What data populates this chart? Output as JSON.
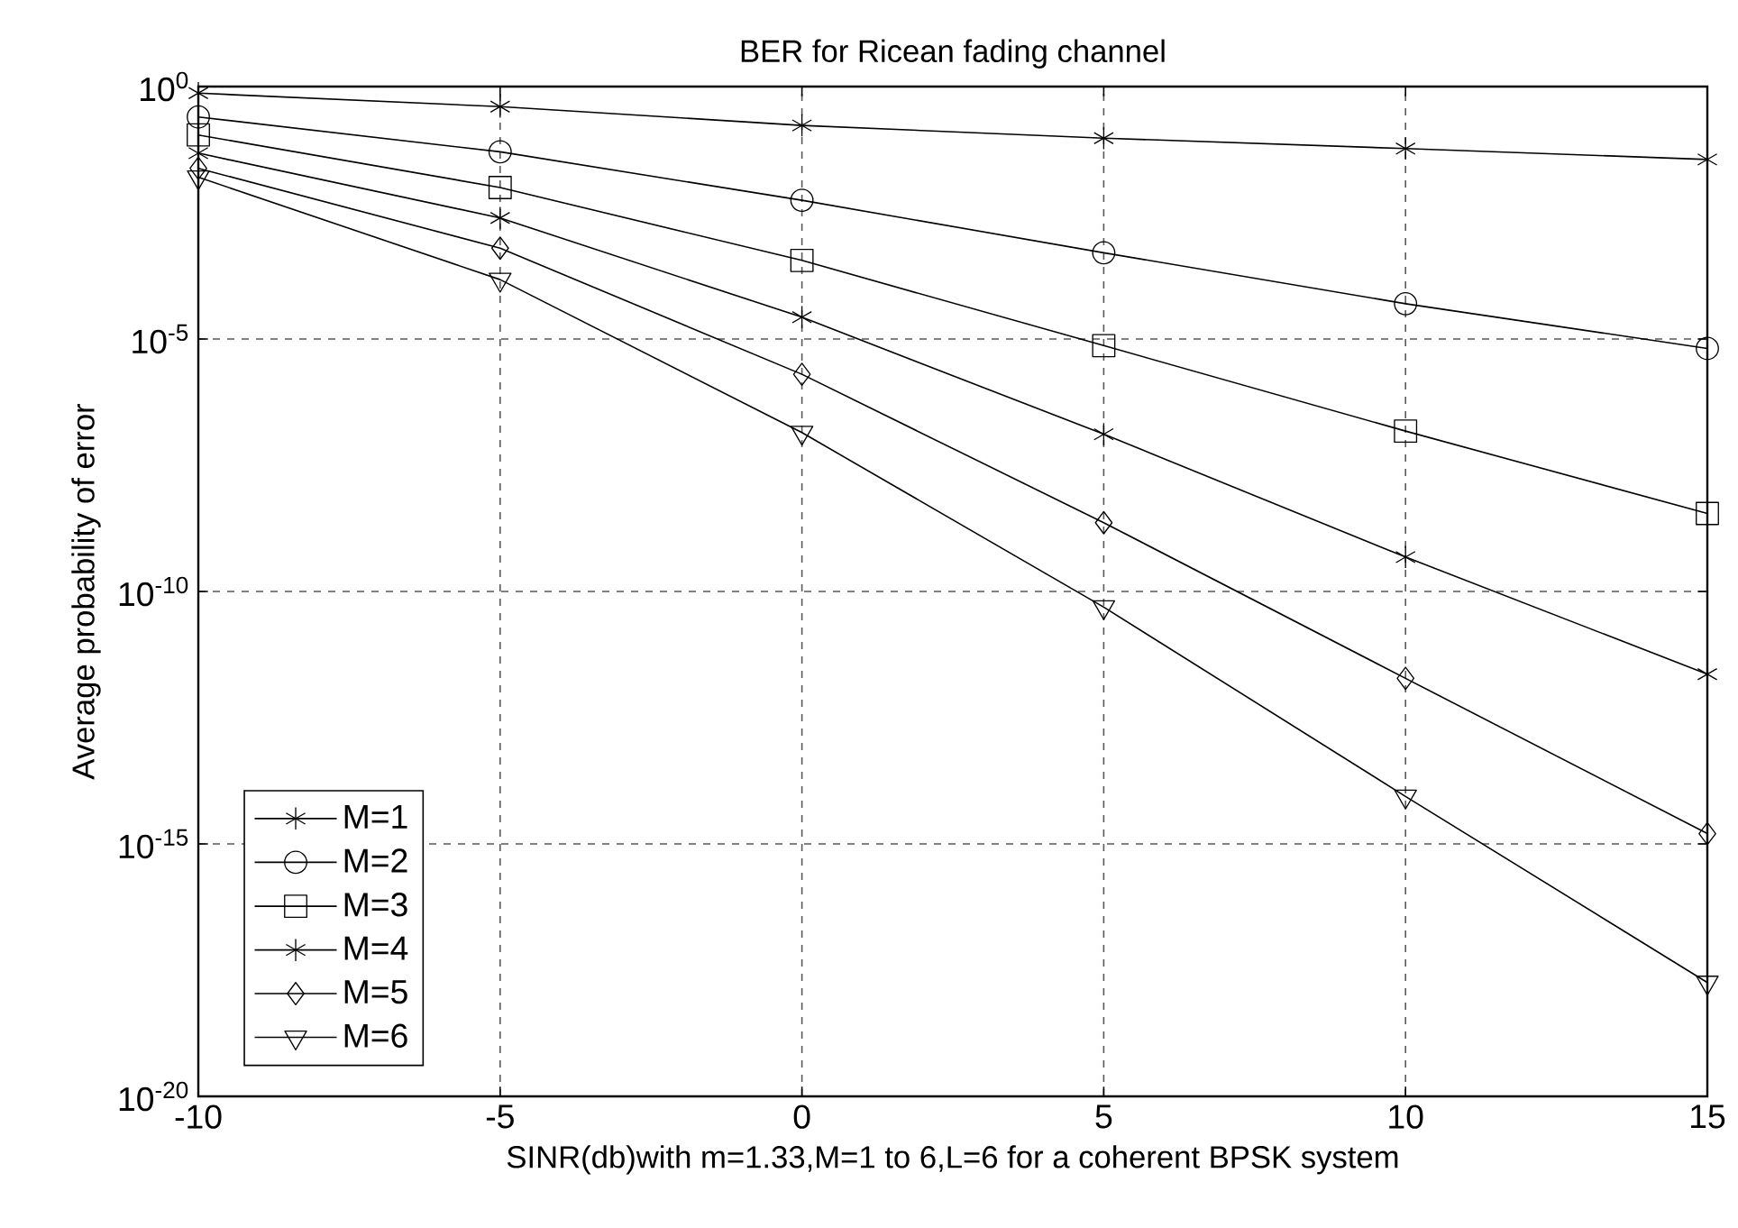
{
  "chart_data": {
    "type": "line",
    "title": "BER for Ricean fading channel",
    "xlabel": "SINR(db)with m=1.33,M=1 to 6,L=6 for a coherent BPSK system",
    "ylabel": "Average probability of error",
    "x": [
      -10,
      -5,
      0,
      5,
      10,
      15
    ],
    "series": [
      {
        "name": "M=1",
        "color": "#000000",
        "marker": "cross",
        "values": [
          0.74,
          0.4,
          0.17,
          0.095,
          0.059,
          0.036
        ]
      },
      {
        "name": "M=2",
        "color": "#000000",
        "marker": "circle",
        "values": [
          0.25,
          0.051,
          0.0056,
          0.00051,
          5e-05,
          6.5e-06
        ]
      },
      {
        "name": "M=3",
        "color": "#000000",
        "marker": "square",
        "values": [
          0.11,
          0.01,
          0.00036,
          7.4e-06,
          1.5e-07,
          3.5e-09
        ]
      },
      {
        "name": "M=4",
        "color": "#000000",
        "marker": "cross",
        "values": [
          0.048,
          0.0025,
          2.7e-05,
          1.3e-07,
          4.8e-10,
          2.3e-12
        ]
      },
      {
        "name": "M=5",
        "color": "#000000",
        "marker": "diamond",
        "values": [
          0.024,
          0.00063,
          2e-06,
          2.3e-09,
          1.9e-12,
          1.6e-15
        ]
      },
      {
        "name": "M=6",
        "color": "#000000",
        "marker": "triangle",
        "values": [
          0.016,
          0.00015,
          1.4e-07,
          4.9e-11,
          8.7e-15,
          1.8e-18
        ]
      }
    ],
    "log": "y",
    "xlim": [
      -10,
      15
    ],
    "xticks": [
      -10,
      -5,
      0,
      5,
      10,
      15
    ],
    "ylim": [
      1e-20,
      1
    ],
    "yticks": [
      {
        "value": 1e-20,
        "label": "10$^{-20}$"
      },
      {
        "value": 1e-15,
        "label": "10$^{-15}$"
      },
      {
        "value": 1e-10,
        "label": "10$^{-10}$"
      },
      {
        "value": 1e-05,
        "label": "10$^{-5}$"
      },
      {
        "value": 1,
        "label": "10$^{0}$"
      }
    ],
    "grid": true,
    "legend": "bottom left"
  }
}
